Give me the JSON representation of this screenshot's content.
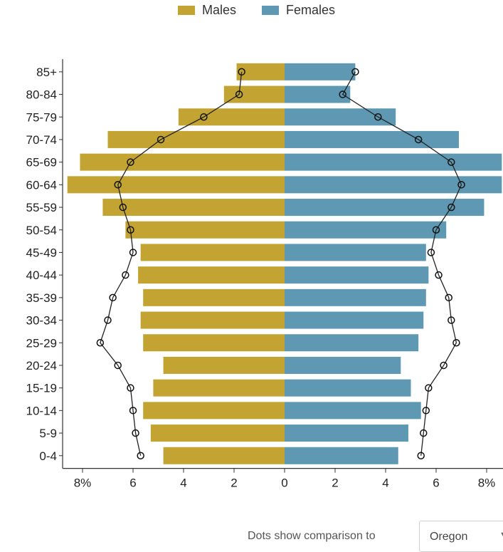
{
  "legend": {
    "males": {
      "label": "Males",
      "color": "#c3a432"
    },
    "females": {
      "label": "Females",
      "color": "#5e98b3"
    }
  },
  "comparison": {
    "label": "Dots show comparison to",
    "selected": "Oregon"
  },
  "chart_data": {
    "type": "bar",
    "orientation": "horizontal-population-pyramid",
    "categories": [
      "0-4",
      "5-9",
      "10-14",
      "15-19",
      "20-24",
      "25-29",
      "30-34",
      "35-39",
      "40-44",
      "45-49",
      "50-54",
      "55-59",
      "60-64",
      "65-69",
      "70-74",
      "75-79",
      "80-84",
      "85+"
    ],
    "series": [
      {
        "name": "Males",
        "color": "#c3a432",
        "values": [
          4.8,
          5.3,
          5.6,
          5.2,
          4.8,
          5.6,
          5.7,
          5.6,
          5.8,
          5.7,
          6.3,
          7.2,
          8.7,
          8.1,
          7.0,
          4.2,
          2.4,
          1.9
        ]
      },
      {
        "name": "Females",
        "color": "#5e98b3",
        "values": [
          4.5,
          4.9,
          5.4,
          5.0,
          4.6,
          5.3,
          5.5,
          5.6,
          5.7,
          5.6,
          6.4,
          7.9,
          8.8,
          8.6,
          6.9,
          4.4,
          2.6,
          2.8
        ]
      }
    ],
    "comparison_dots": {
      "males": [
        5.7,
        5.9,
        6.0,
        6.1,
        6.6,
        7.3,
        7.0,
        6.8,
        6.3,
        6.0,
        6.1,
        6.4,
        6.6,
        6.1,
        4.9,
        3.2,
        1.8,
        1.7
      ],
      "females": [
        5.4,
        5.5,
        5.6,
        5.7,
        6.3,
        6.8,
        6.6,
        6.5,
        6.1,
        5.8,
        6.0,
        6.6,
        7.0,
        6.6,
        5.3,
        3.7,
        2.3,
        2.8
      ]
    },
    "x_ticks_left": [
      "8%",
      "6",
      "4",
      "2",
      "0"
    ],
    "x_ticks_right": [
      "2",
      "4",
      "6",
      "8%"
    ],
    "xlim": [
      -8.6,
      8.6
    ],
    "grid": false
  }
}
